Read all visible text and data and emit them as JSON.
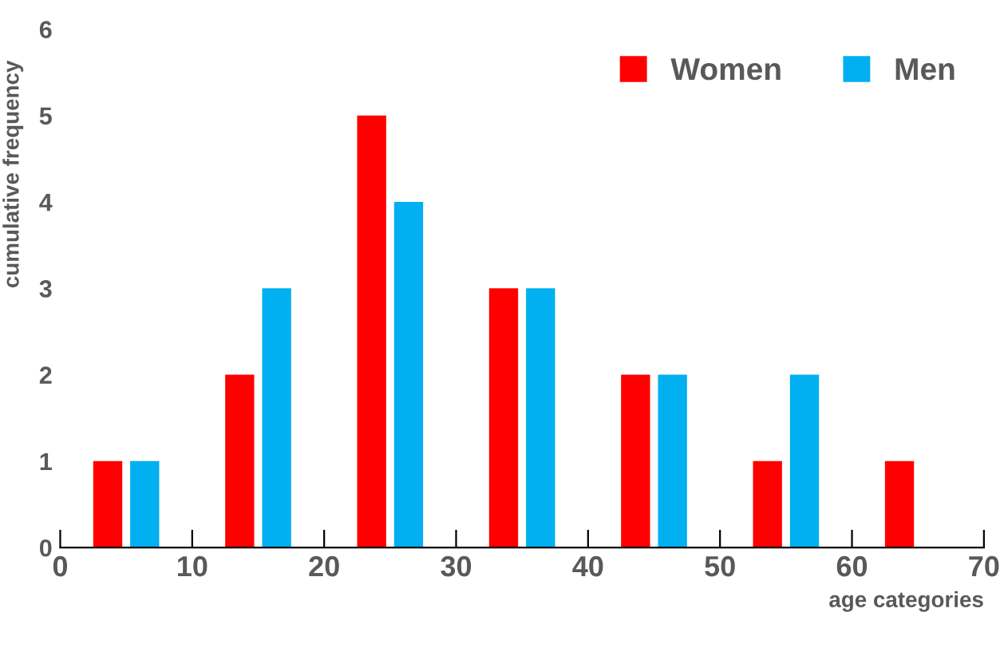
{
  "chart_data": {
    "type": "bar",
    "xlabel": "age categories",
    "ylabel": "cumulative frequency",
    "x": [
      3.6,
      13.6,
      23.6,
      33.6,
      43.6,
      53.6,
      63.6
    ],
    "series": [
      {
        "name": "Women",
        "color": "#ff0000",
        "values": [
          1,
          2,
          5,
          3,
          2,
          1,
          1
        ]
      },
      {
        "name": "Men",
        "color": "#00b0f0",
        "x": [
          6.4,
          16.4,
          26.4,
          36.4,
          46.4,
          56.4
        ],
        "values": [
          1,
          3,
          4,
          3,
          2,
          2
        ]
      }
    ],
    "xlim": [
      0,
      70
    ],
    "xticks": [
      0,
      10,
      20,
      30,
      40,
      50,
      60,
      70
    ],
    "ylim": [
      0,
      6
    ],
    "yticks": [
      0,
      1,
      2,
      3,
      4,
      5,
      6
    ],
    "grid": false,
    "legend": "top right"
  }
}
